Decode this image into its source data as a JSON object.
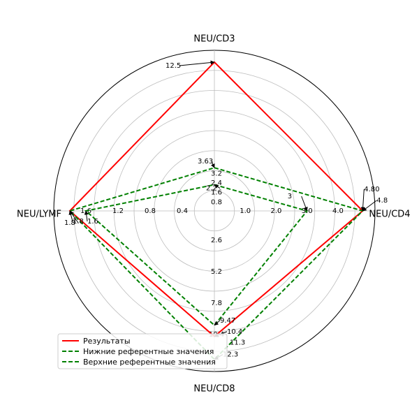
{
  "chart_data": {
    "type": "radar",
    "title": "",
    "axes": [
      "NEU/CD3",
      "NEU/CD4",
      "NEU/CD8",
      "NEU/LYMF"
    ],
    "series": [
      {
        "name": "Результаты",
        "color": "#ff0000",
        "style": "solid",
        "values": [
          12.5,
          4.8,
          10.4,
          1.8
        ],
        "labels": [
          "12.5",
          "4.8",
          "10.4",
          "1.8"
        ]
      },
      {
        "name": "Нижние референтные значения",
        "color": "#008000",
        "style": "dashed",
        "values": [
          2.2,
          3.0,
          9.47,
          1.6
        ],
        "labels": [
          "2.2",
          "3",
          "9.47",
          "1.6"
        ]
      },
      {
        "name": "Верхние референтные значения",
        "color": "#008000",
        "style": "dashed",
        "values": [
          3.63,
          4.8,
          12.3,
          1.8
        ],
        "labels": [
          "3.63",
          "4.80",
          "12.3",
          "1.8"
        ]
      }
    ],
    "axis_max": [
      13.5,
      5.2,
      13.3,
      2.0
    ],
    "ring_ticks": {
      "NEU/CD3": [
        "0.8",
        "1.6",
        "2.4",
        "3.2"
      ],
      "NEU/CD4": [
        "1.0",
        "2.0",
        "3.0",
        "4.0"
      ],
      "NEU/CD8": [
        "2.6",
        "5.2",
        "7.8",
        "10.4"
      ],
      "NEU/LYMF": [
        "0.4",
        "0.8",
        "1.2",
        "1.6"
      ]
    },
    "extra_annotations": [
      "11.3"
    ],
    "grid": true,
    "legend_position": "lower-left"
  }
}
